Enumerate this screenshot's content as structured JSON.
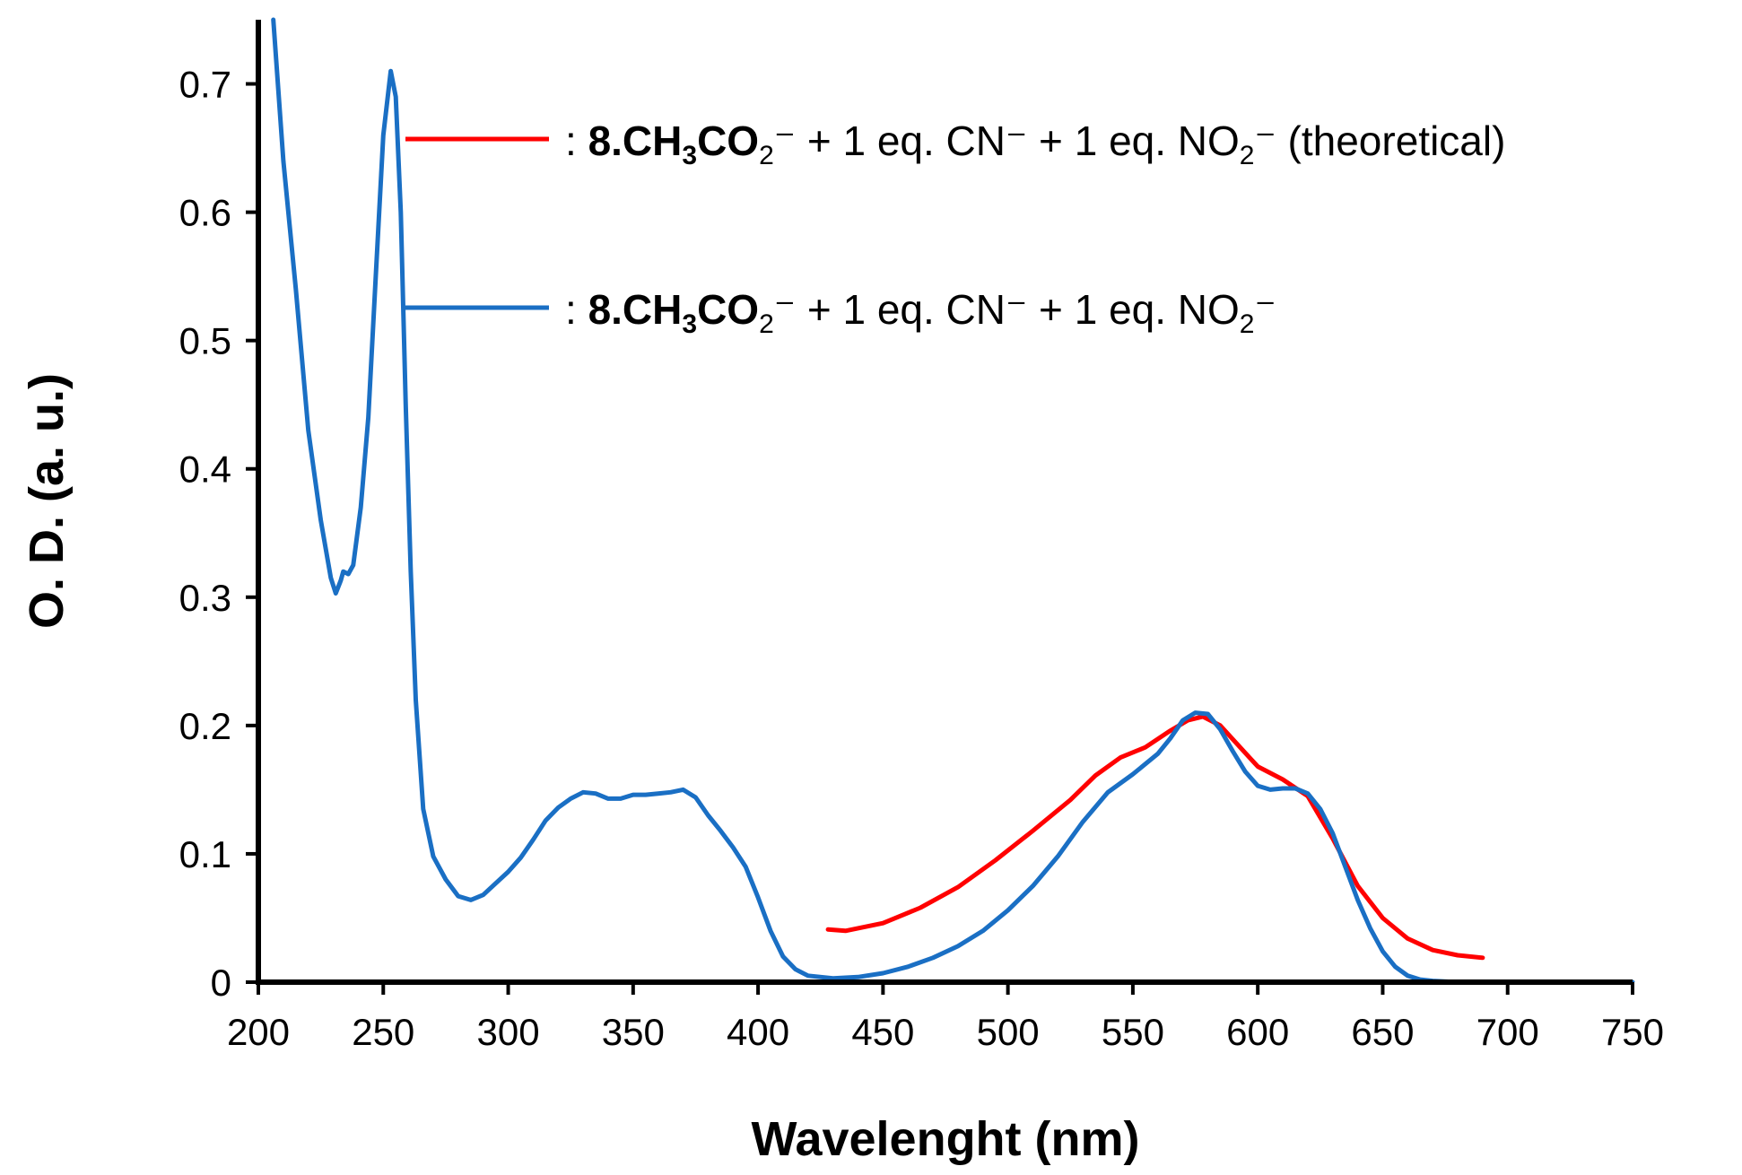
{
  "chart_data": {
    "type": "line",
    "title": "",
    "xlabel": "Wavelenght (nm)",
    "ylabel": "O. D. (a. u.)",
    "xlim": [
      200,
      750
    ],
    "ylim": [
      0,
      0.75
    ],
    "x_ticks": [
      200,
      250,
      300,
      350,
      400,
      450,
      500,
      550,
      600,
      650,
      700,
      750
    ],
    "x_tick_labels": [
      "200",
      "250",
      "300",
      "350",
      "400",
      "450",
      "500",
      "550",
      "600",
      "650",
      "700",
      "750"
    ],
    "y_ticks": [
      0,
      0.1,
      0.2,
      0.3,
      0.4,
      0.5,
      0.6,
      0.7
    ],
    "y_tick_labels": [
      "0",
      "0.1",
      "0.2",
      "0.3",
      "0.4",
      "0.5",
      "0.6",
      "0.7"
    ],
    "grid": false,
    "legend_position": "top",
    "series": [
      {
        "name": "8.CH3CO2- + 1 eq. CN- + 1 eq. NO2- (theoretical)",
        "color": "#ff0000",
        "x": [
          428,
          435,
          450,
          465,
          480,
          495,
          510,
          525,
          535,
          545,
          555,
          565,
          572,
          578,
          585,
          592,
          600,
          610,
          620,
          630,
          640,
          650,
          660,
          670,
          680,
          690
        ],
        "y": [
          0.041,
          0.04,
          0.046,
          0.058,
          0.074,
          0.095,
          0.118,
          0.142,
          0.161,
          0.175,
          0.183,
          0.196,
          0.204,
          0.207,
          0.2,
          0.185,
          0.168,
          0.158,
          0.145,
          0.112,
          0.075,
          0.05,
          0.034,
          0.025,
          0.021,
          0.019
        ]
      },
      {
        "name": "8.CH3CO2- + 1 eq. CN- + 1 eq. NO2-",
        "color": "#1a6fc4",
        "x": [
          206,
          210,
          215,
          220,
          225,
          229,
          231,
          233,
          234,
          236,
          238,
          241,
          244,
          247,
          250,
          253,
          255,
          257,
          259,
          261,
          263,
          266,
          270,
          275,
          280,
          285,
          290,
          295,
          300,
          305,
          310,
          315,
          320,
          325,
          330,
          335,
          340,
          345,
          350,
          355,
          360,
          365,
          370,
          375,
          380,
          385,
          390,
          395,
          400,
          405,
          410,
          415,
          420,
          430,
          440,
          450,
          460,
          470,
          480,
          490,
          500,
          510,
          520,
          530,
          540,
          550,
          560,
          565,
          570,
          575,
          580,
          585,
          590,
          595,
          600,
          605,
          610,
          615,
          620,
          625,
          630,
          635,
          640,
          645,
          650,
          655,
          660,
          665,
          670,
          680,
          690,
          700,
          720,
          750
        ],
        "y": [
          0.75,
          0.64,
          0.54,
          0.43,
          0.36,
          0.315,
          0.303,
          0.313,
          0.32,
          0.318,
          0.325,
          0.37,
          0.44,
          0.55,
          0.66,
          0.71,
          0.69,
          0.6,
          0.45,
          0.32,
          0.22,
          0.135,
          0.098,
          0.08,
          0.067,
          0.064,
          0.068,
          0.077,
          0.086,
          0.097,
          0.111,
          0.126,
          0.136,
          0.143,
          0.148,
          0.147,
          0.143,
          0.143,
          0.146,
          0.146,
          0.147,
          0.148,
          0.15,
          0.144,
          0.13,
          0.118,
          0.105,
          0.09,
          0.066,
          0.04,
          0.02,
          0.01,
          0.005,
          0.003,
          0.004,
          0.007,
          0.012,
          0.019,
          0.028,
          0.04,
          0.056,
          0.075,
          0.098,
          0.125,
          0.148,
          0.162,
          0.178,
          0.19,
          0.204,
          0.21,
          0.209,
          0.197,
          0.18,
          0.164,
          0.153,
          0.15,
          0.151,
          0.151,
          0.147,
          0.135,
          0.116,
          0.09,
          0.064,
          0.042,
          0.024,
          0.012,
          0.005,
          0.002,
          0.001,
          0.0,
          0.0,
          0.0,
          0.0,
          0.0
        ]
      }
    ],
    "legend": [
      {
        "prefix": ": ",
        "bold": "8",
        "formula": ".CH",
        "sub1": "3",
        "formula2": "CO",
        "sub2": "2",
        "rest": "⁻ + 1 eq. CN⁻ + 1 eq. NO",
        "sub3": "2",
        "suffix": "⁻ (theoretical)"
      },
      {
        "prefix": ": ",
        "bold": "8",
        "formula": ".CH",
        "sub1": "3",
        "formula2": "CO",
        "sub2": "2",
        "rest": "⁻ + 1 eq. CN⁻ + 1 eq. NO",
        "sub3": "2",
        "suffix": "⁻"
      }
    ]
  }
}
